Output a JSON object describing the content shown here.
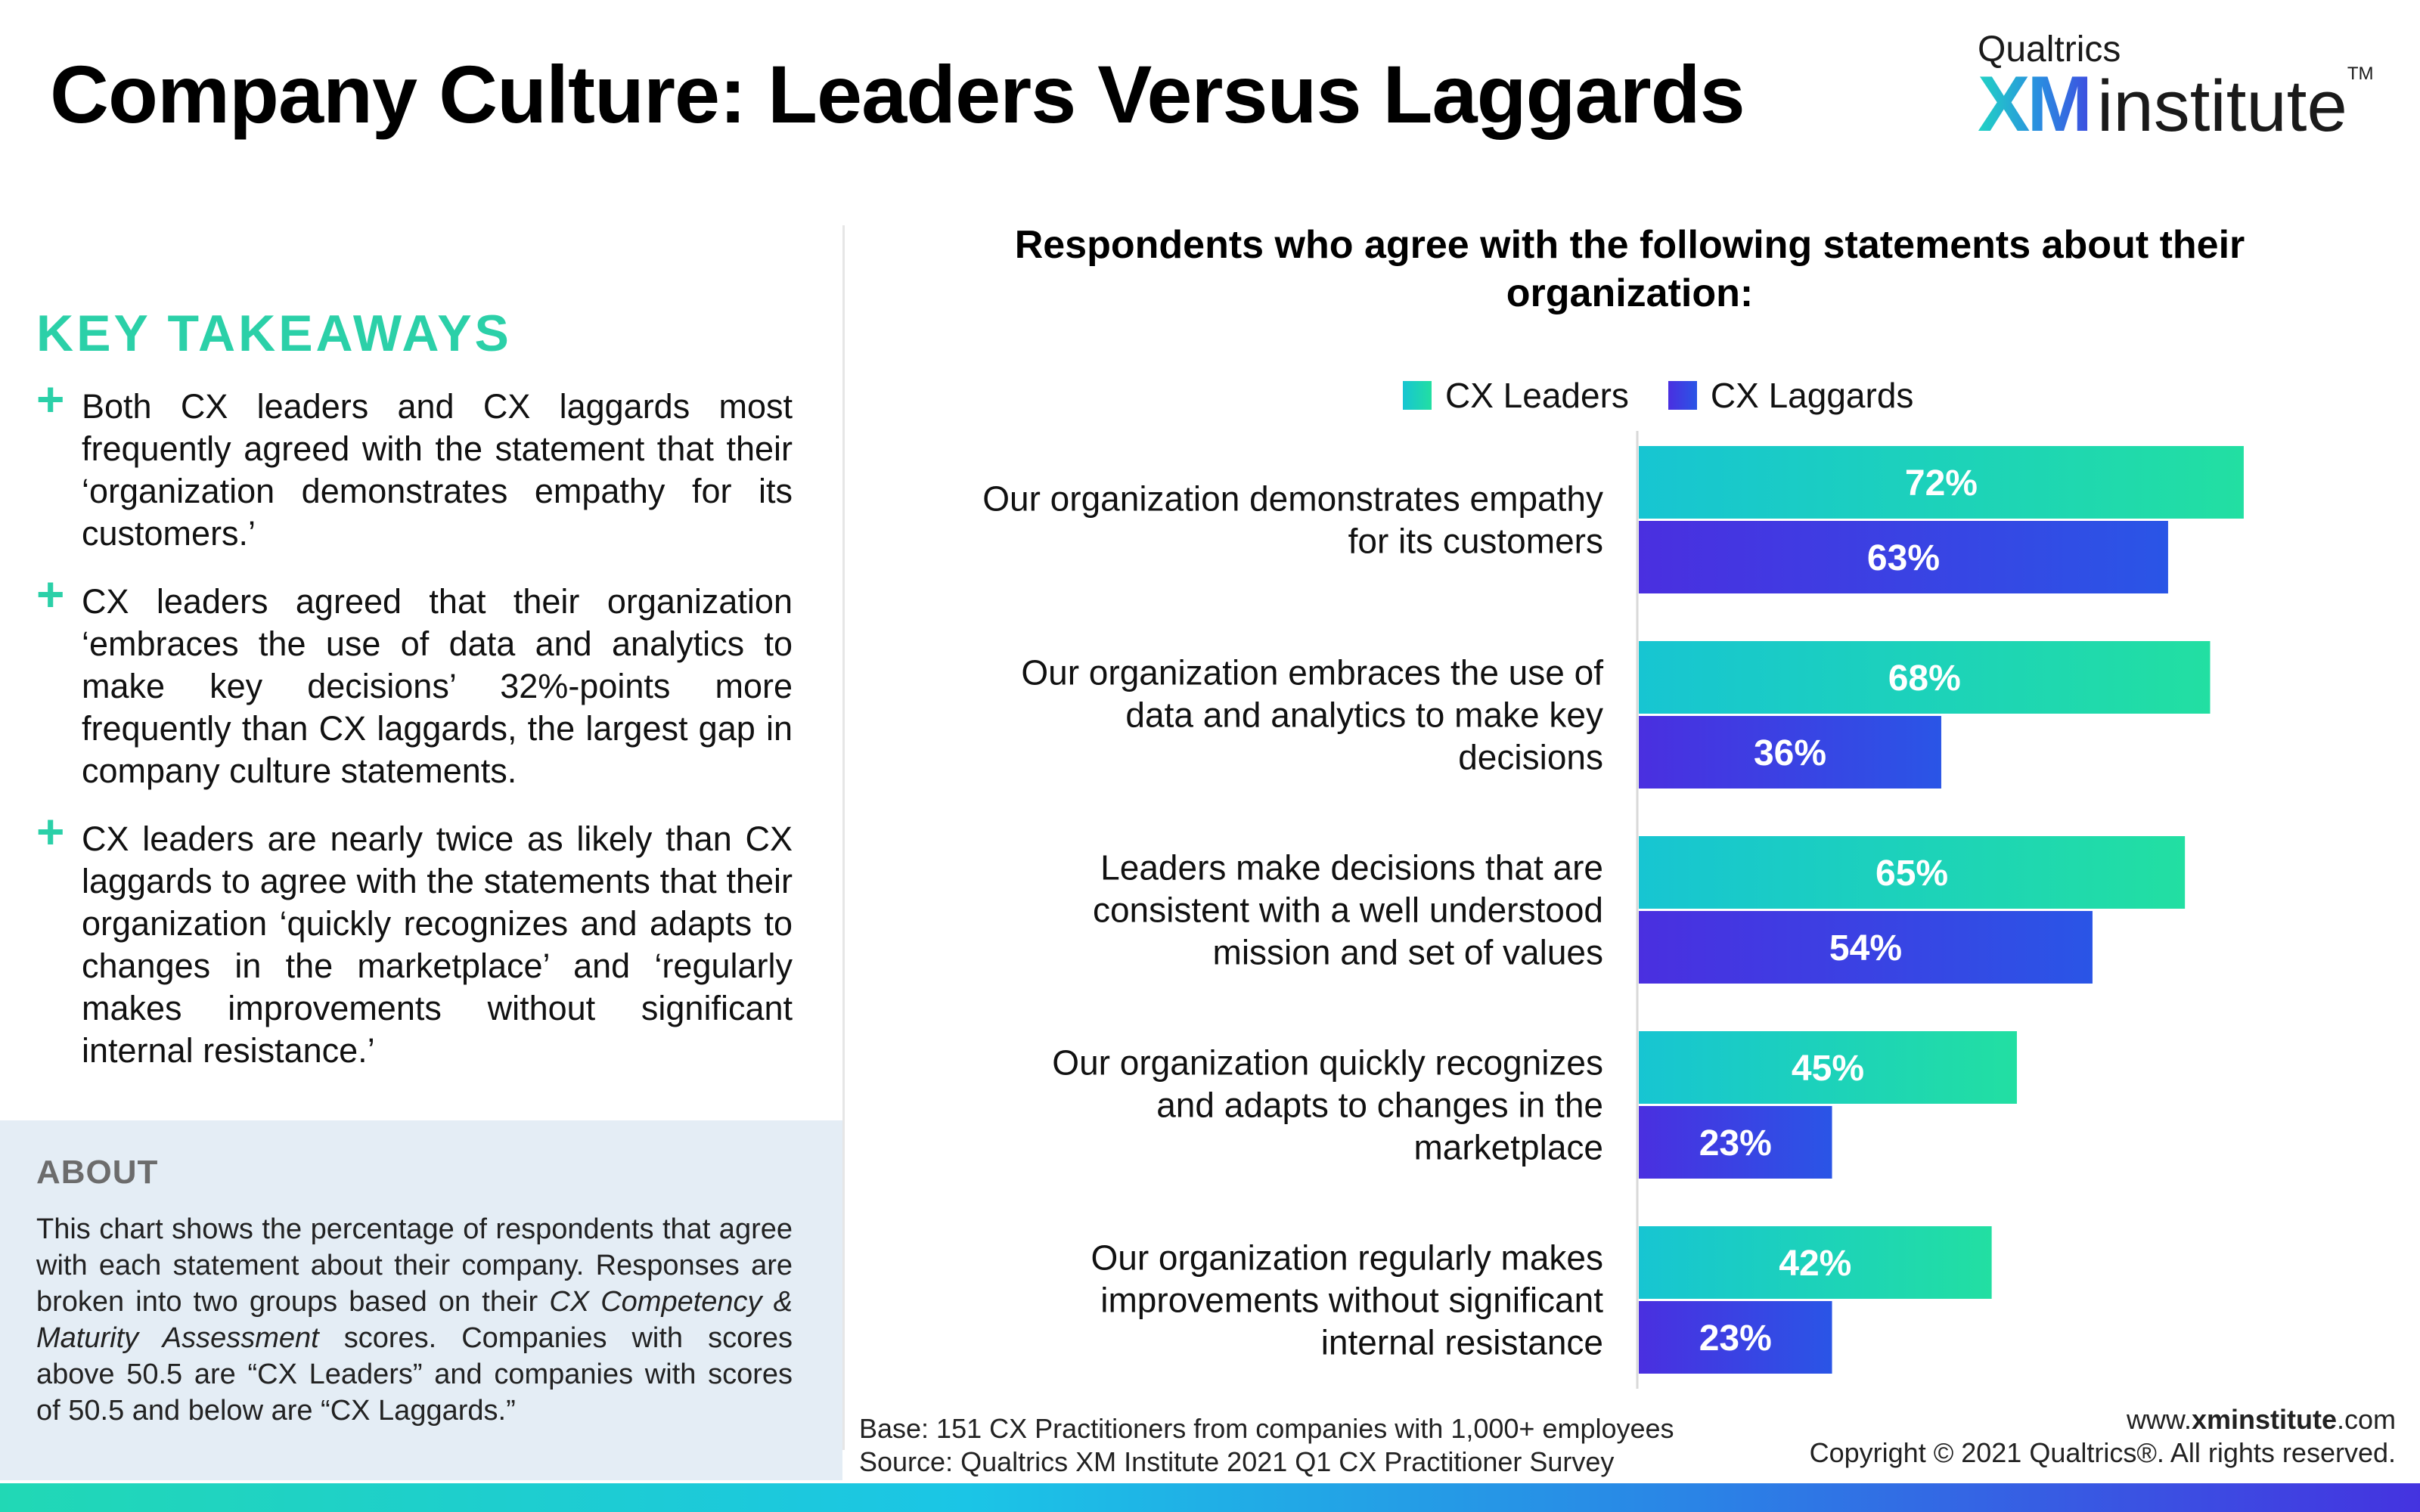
{
  "header": {
    "title": "Company Culture: Leaders Versus Laggards",
    "logo_brand": "Qualtrics",
    "logo_xm": "XM",
    "logo_institute": "institute",
    "logo_tm": "TM"
  },
  "takeaways": {
    "heading": "KEY TAKEAWAYS",
    "items": [
      "Both CX leaders and CX laggards most frequently agreed with the statement that their ‘organization demonstrates empathy for its customers.’",
      "CX leaders agreed that their organization ‘embraces the use of data and analytics to make key decisions’ 32%-points more frequently than CX laggards, the largest gap in company culture statements.",
      "CX leaders are nearly twice as likely than CX laggards to agree with the statements that their organization ‘quickly recognizes and adapts to changes in the marketplace’ and ‘regularly makes improvements without significant internal resistance.’"
    ]
  },
  "about": {
    "heading": "ABOUT",
    "text_1": "This chart shows the percentage of respondents that agree with each statement about their company. Responses are broken into two groups based on their ",
    "text_italic": "CX Competency & Maturity Assessment",
    "text_2": " scores. Companies with scores above 50.5 are “CX Leaders” and companies with scores of 50.5 and below  are “CX Laggards.”"
  },
  "chart_data": {
    "type": "bar",
    "orientation": "horizontal",
    "title": "Respondents who agree with the following statements about their organization:",
    "categories": [
      "Our organization demonstrates empathy for its customers",
      "Our organization embraces the use of data and analytics to make key decisions",
      "Leaders make decisions that are consistent with a well understood mission and set of values",
      "Our organization quickly recognizes and adapts to changes in the marketplace",
      "Our organization regularly makes improvements without significant internal resistance"
    ],
    "series": [
      {
        "name": "CX Leaders",
        "values": [
          72,
          68,
          65,
          45,
          42
        ],
        "color_start": "#17c5d2",
        "color_end": "#22dfa2"
      },
      {
        "name": "CX Laggards",
        "values": [
          63,
          36,
          54,
          23,
          23
        ],
        "color_start": "#4a2fe0",
        "color_end": "#2a55e6"
      }
    ],
    "value_suffix": "%",
    "xlim": [
      0,
      100
    ],
    "legend_position": "top",
    "grid": false
  },
  "footer": {
    "base": "Base: 151 CX Practitioners from companies with 1,000+ employees",
    "source": "Source: Qualtrics XM Institute 2021 Q1 CX Practitioner Survey",
    "web_prefix": "www.",
    "web_bold": "xminstitute",
    "web_suffix": ".com",
    "copyright": "Copyright © 2021 Qualtrics®. All rights reserved."
  }
}
